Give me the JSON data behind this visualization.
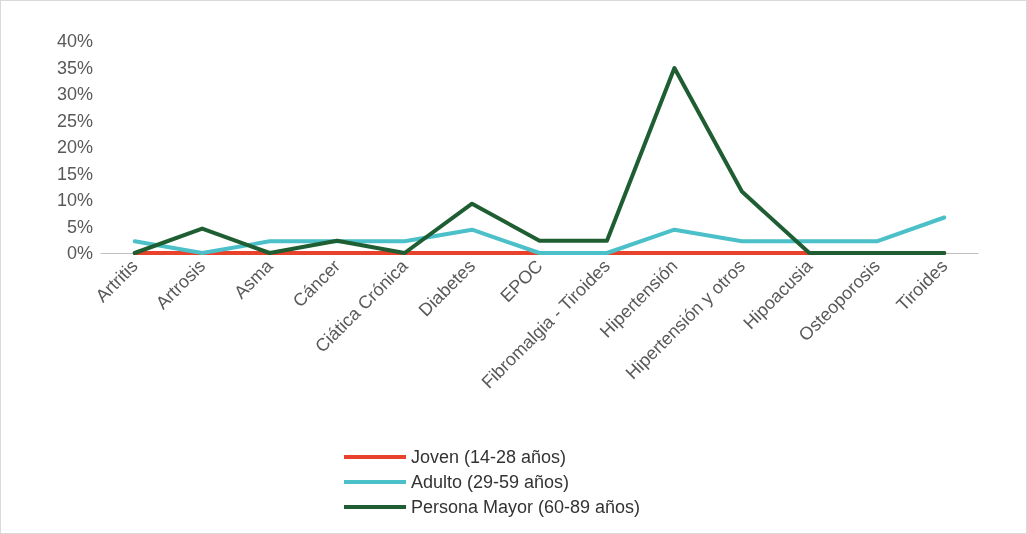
{
  "chart_data": {
    "type": "line",
    "categories": [
      "Artritis",
      "Artrosis",
      "Asma",
      "Cáncer",
      "Ciática Crónica",
      "Diabetes",
      "EPOC",
      "Fibromalgia - Tiroides",
      "Hipertensión",
      "Hipertensión y otros",
      "Hipoacusia",
      "Osteoporosis",
      "Tiroides"
    ],
    "series": [
      {
        "name": "Joven (14-28 años)",
        "color": "#e8412c",
        "values": [
          0,
          0,
          0,
          0,
          0,
          0,
          0,
          0,
          0,
          0,
          0,
          0,
          0
        ]
      },
      {
        "name": "Adulto (29-59 años)",
        "color": "#4bc0c8",
        "values": [
          2.2,
          0,
          2.2,
          2.2,
          2.2,
          4.4,
          0,
          0,
          4.4,
          2.2,
          2.2,
          2.2,
          6.7
        ]
      },
      {
        "name": "Persona Mayor (60-89 años)",
        "color": "#1e5e32",
        "values": [
          0,
          4.6,
          0,
          2.3,
          0,
          9.3,
          2.3,
          2.3,
          34.9,
          11.6,
          0,
          0,
          0
        ]
      }
    ],
    "ylim": [
      0,
      40
    ],
    "yticks": [
      {
        "value": 0,
        "label": "0%"
      },
      {
        "value": 5,
        "label": "5%"
      },
      {
        "value": 10,
        "label": "10%"
      },
      {
        "value": 15,
        "label": "15%"
      },
      {
        "value": 20,
        "label": "20%"
      },
      {
        "value": 25,
        "label": "25%"
      },
      {
        "value": 30,
        "label": "30%"
      },
      {
        "value": 35,
        "label": "35%"
      },
      {
        "value": 40,
        "label": "40%"
      }
    ],
    "grid": false,
    "legend": "bottom",
    "marker": "none",
    "line_style": "solid"
  }
}
